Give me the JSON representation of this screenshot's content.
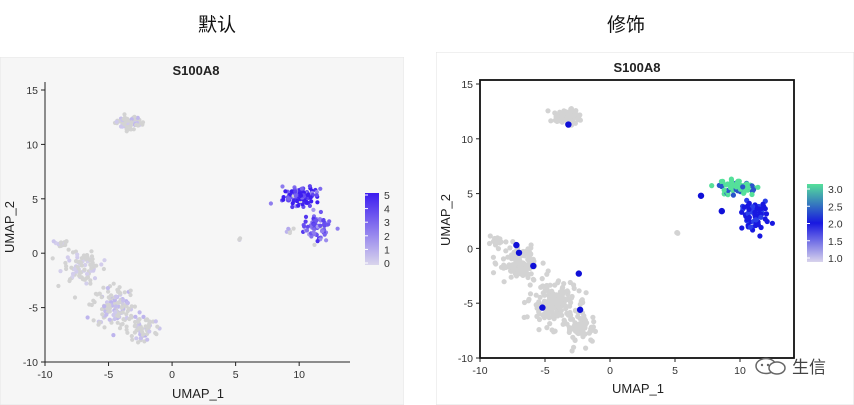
{
  "panels": {
    "left_header": "默认",
    "right_header": "修饰"
  },
  "watermark": {
    "text": "生信"
  },
  "colors": {
    "base": "#d3d3d3",
    "left_low": "#d9d5ec",
    "left_high": "#3c1cf0",
    "right_low": "#d8d3ec",
    "right_mid": "#1818e0",
    "right_high": "#55e09a"
  },
  "chart_data": [
    {
      "type": "scatter",
      "title": "S100A8",
      "xlabel": "UMAP_1",
      "ylabel": "UMAP_2",
      "xlim": [
        -10,
        14
      ],
      "ylim": [
        -10,
        15
      ],
      "xticks": [
        -10,
        -5,
        0,
        5,
        10
      ],
      "yticks": [
        -10,
        -5,
        0,
        5,
        10,
        15
      ],
      "grid": false,
      "frame": "axes-only",
      "legend": {
        "position": "right",
        "ticks": [
          0,
          1,
          2,
          3,
          4,
          5
        ],
        "range": [
          0,
          5
        ]
      },
      "clusters": [
        {
          "cx": -3.4,
          "cy": 12.0,
          "sx": 1.0,
          "sy": 0.55,
          "n": 70,
          "expr": 0.6
        },
        {
          "cx": 10.2,
          "cy": 5.2,
          "sx": 1.3,
          "sy": 0.75,
          "n": 110,
          "expr": 4.2
        },
        {
          "cx": 11.4,
          "cy": 2.5,
          "sx": 0.9,
          "sy": 1.2,
          "n": 70,
          "expr": 3.0
        },
        {
          "cx": 5.3,
          "cy": 1.3,
          "sx": 0.1,
          "sy": 0.1,
          "n": 3,
          "expr": 0.2
        },
        {
          "cx": 9.3,
          "cy": 2.0,
          "sx": 0.3,
          "sy": 0.3,
          "n": 6,
          "expr": 1.5
        },
        {
          "cx": -7.2,
          "cy": -1.2,
          "sx": 1.4,
          "sy": 1.3,
          "n": 90,
          "expr": 0.2
        },
        {
          "cx": -4.6,
          "cy": -4.8,
          "sx": 1.5,
          "sy": 1.7,
          "n": 140,
          "expr": 0.6
        },
        {
          "cx": -2.4,
          "cy": -7.0,
          "sx": 1.1,
          "sy": 1.2,
          "n": 60,
          "expr": 0.6
        },
        {
          "cx": -8.7,
          "cy": 0.8,
          "sx": 0.5,
          "sy": 0.4,
          "n": 20,
          "expr": 0.3
        }
      ]
    },
    {
      "type": "scatter",
      "title": "S100A8",
      "xlabel": "UMAP_1",
      "ylabel": "UMAP_2",
      "xlim": [
        -10,
        14
      ],
      "ylim": [
        -10,
        15
      ],
      "xticks": [
        -10,
        -5,
        0,
        5,
        10
      ],
      "yticks": [
        -10,
        -5,
        0,
        5,
        10,
        15
      ],
      "grid": false,
      "frame": "box",
      "legend": {
        "position": "right",
        "ticks": [
          1.0,
          1.5,
          2.0,
          2.5,
          3.0
        ],
        "range": [
          1,
          3
        ]
      },
      "clusters": [
        {
          "cx": -3.4,
          "cy": 12.0,
          "sx": 0.95,
          "sy": 0.6,
          "n": 80,
          "expr": 0
        },
        {
          "cx": 9.8,
          "cy": 5.6,
          "sx": 1.2,
          "sy": 0.6,
          "n": 90,
          "expr": 3.0
        },
        {
          "cx": 11.2,
          "cy": 3.0,
          "sx": 0.9,
          "sy": 1.2,
          "n": 70,
          "expr": 2.2
        },
        {
          "cx": 5.2,
          "cy": 1.4,
          "sx": 0.1,
          "sy": 0.1,
          "n": 3,
          "expr": 0
        },
        {
          "cx": -7.0,
          "cy": -1.5,
          "sx": 1.5,
          "sy": 1.4,
          "n": 110,
          "expr": 0
        },
        {
          "cx": -4.4,
          "cy": -5.0,
          "sx": 1.6,
          "sy": 1.8,
          "n": 170,
          "expr": 0
        },
        {
          "cx": -2.2,
          "cy": -7.2,
          "sx": 1.1,
          "sy": 1.3,
          "n": 70,
          "expr": 0
        },
        {
          "cx": -8.8,
          "cy": 0.5,
          "sx": 0.5,
          "sy": 0.4,
          "n": 20,
          "expr": 0
        }
      ],
      "highlights": [
        {
          "x": -3.2,
          "y": 11.3,
          "expr": 2.2
        },
        {
          "x": -7.2,
          "y": 0.3,
          "expr": 2.2
        },
        {
          "x": -7.0,
          "y": -0.4,
          "expr": 2.0
        },
        {
          "x": -2.4,
          "y": -2.3,
          "expr": 2.2
        },
        {
          "x": -5.2,
          "y": -5.4,
          "expr": 2.2
        },
        {
          "x": -2.3,
          "y": -5.6,
          "expr": 2.0
        },
        {
          "x": -5.9,
          "y": -1.6,
          "expr": 1.8
        },
        {
          "x": 7.0,
          "y": 4.8,
          "expr": 2.2
        },
        {
          "x": 8.6,
          "y": 3.4,
          "expr": 2.2
        }
      ]
    }
  ]
}
